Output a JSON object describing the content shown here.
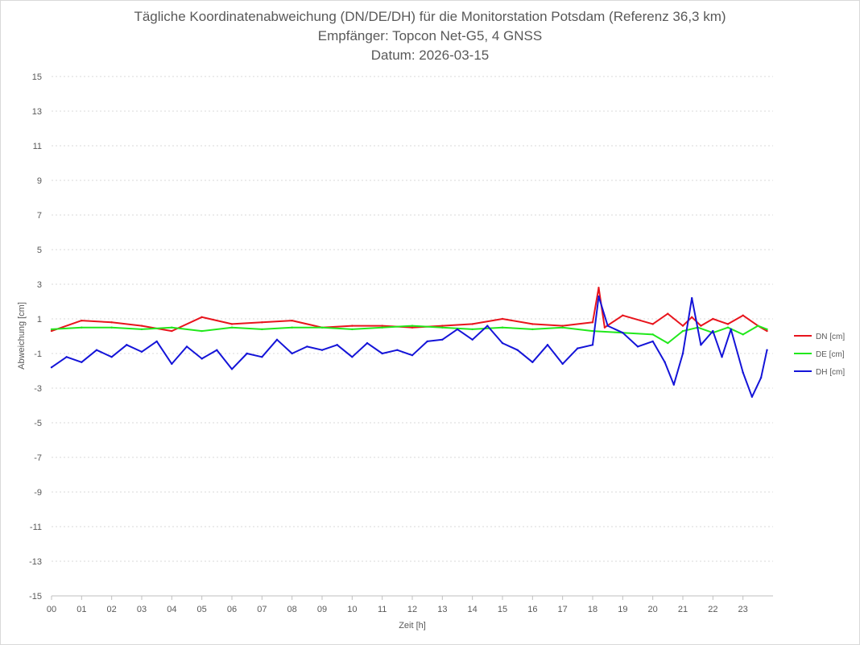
{
  "chart_data": {
    "type": "line",
    "title": "Tägliche Koordinatenabweichung (DN/DE/DH) für die Monitorstation Potsdam (Referenz 36,3 km)",
    "subtitle": "Empfänger: Topcon Net-G5, 4 GNSS",
    "date_line": "Datum: 2026-03-15",
    "xlabel": "Zeit [h]",
    "ylabel": "Abweichung [cm]",
    "ylim": [
      -15,
      15
    ],
    "xlim": [
      0,
      24
    ],
    "grid": true,
    "legend_position": "right",
    "y_ticks": [
      "15",
      "13",
      "11",
      "9",
      "7",
      "5",
      "3",
      "1",
      "-1",
      "-3",
      "-5",
      "-7",
      "-9",
      "-11",
      "-13",
      "-15"
    ],
    "x_ticks": [
      "00",
      "01",
      "02",
      "03",
      "04",
      "05",
      "06",
      "07",
      "08",
      "09",
      "10",
      "11",
      "12",
      "13",
      "14",
      "15",
      "16",
      "17",
      "18",
      "19",
      "20",
      "21",
      "22",
      "23"
    ],
    "series": [
      {
        "name": "DN [cm]",
        "color": "#e8141c",
        "x": [
          0,
          1,
          2,
          3,
          4,
          5,
          6,
          7,
          8,
          9,
          10,
          11,
          12,
          13,
          14,
          15,
          16,
          17,
          18,
          18.2,
          18.4,
          19,
          20,
          20.5,
          21,
          21.3,
          21.6,
          22,
          22.5,
          23,
          23.5,
          23.8
        ],
        "y": [
          0.3,
          0.9,
          0.8,
          0.6,
          0.3,
          1.1,
          0.7,
          0.8,
          0.9,
          0.5,
          0.6,
          0.6,
          0.5,
          0.6,
          0.7,
          1.0,
          0.7,
          0.6,
          0.8,
          2.8,
          0.5,
          1.2,
          0.7,
          1.3,
          0.6,
          1.1,
          0.6,
          1.0,
          0.7,
          1.2,
          0.6,
          0.3
        ]
      },
      {
        "name": "DE [cm]",
        "color": "#21e81c",
        "x": [
          0,
          1,
          2,
          3,
          4,
          5,
          6,
          7,
          8,
          9,
          10,
          11,
          12,
          13,
          14,
          15,
          16,
          17,
          18,
          19,
          20,
          20.5,
          21,
          21.5,
          22,
          22.5,
          23,
          23.5,
          23.8
        ],
        "y": [
          0.4,
          0.5,
          0.5,
          0.4,
          0.5,
          0.3,
          0.5,
          0.4,
          0.5,
          0.5,
          0.4,
          0.5,
          0.6,
          0.5,
          0.4,
          0.5,
          0.4,
          0.5,
          0.3,
          0.2,
          0.1,
          -0.4,
          0.3,
          0.5,
          0.2,
          0.5,
          0.1,
          0.6,
          0.4
        ]
      },
      {
        "name": "DH [cm]",
        "color": "#1414d8",
        "x": [
          0,
          0.5,
          1,
          1.5,
          2,
          2.5,
          3,
          3.5,
          4,
          4.5,
          5,
          5.5,
          6,
          6.5,
          7,
          7.5,
          8,
          8.5,
          9,
          9.5,
          10,
          10.5,
          11,
          11.5,
          12,
          12.5,
          13,
          13.5,
          14,
          14.5,
          15,
          15.5,
          16,
          16.5,
          17,
          17.5,
          18,
          18.2,
          18.5,
          19,
          19.5,
          20,
          20.4,
          20.7,
          21,
          21.3,
          21.6,
          22,
          22.3,
          22.6,
          23,
          23.3,
          23.6,
          23.8
        ],
        "y": [
          -1.8,
          -1.2,
          -1.5,
          -0.8,
          -1.2,
          -0.5,
          -0.9,
          -0.3,
          -1.6,
          -0.6,
          -1.3,
          -0.8,
          -1.9,
          -1.0,
          -1.2,
          -0.2,
          -1.0,
          -0.6,
          -0.8,
          -0.5,
          -1.2,
          -0.4,
          -1.0,
          -0.8,
          -1.1,
          -0.3,
          -0.2,
          0.4,
          -0.2,
          0.6,
          -0.4,
          -0.8,
          -1.5,
          -0.5,
          -1.6,
          -0.7,
          -0.5,
          2.3,
          0.6,
          0.2,
          -0.6,
          -0.3,
          -1.5,
          -2.8,
          -1.0,
          2.2,
          -0.5,
          0.3,
          -1.2,
          0.4,
          -2.1,
          -3.5,
          -2.4,
          -0.8
        ]
      }
    ]
  }
}
